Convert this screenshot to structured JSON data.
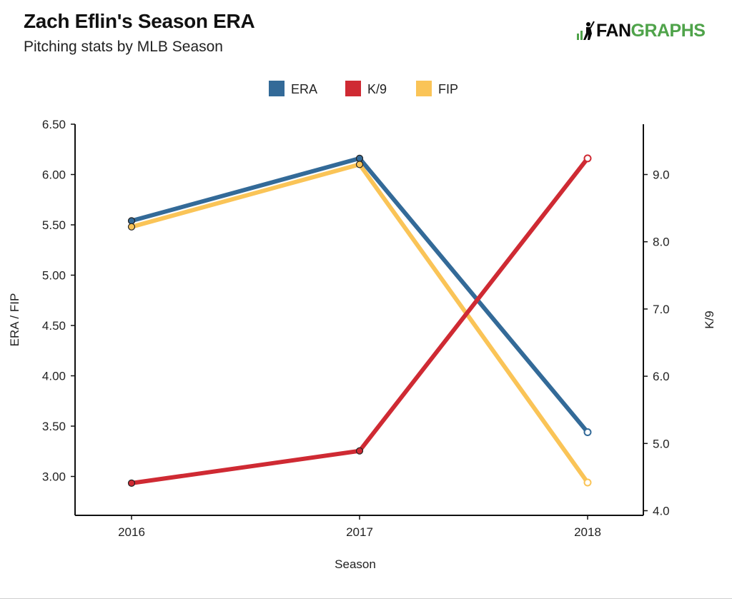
{
  "header": {
    "title": "Zach Eflin's Season ERA",
    "subtitle": "Pitching stats by MLB Season"
  },
  "brand": {
    "fan": "FAN",
    "graphs": "GRAPHS",
    "colors": {
      "fan": "#0a0a0a",
      "graphs": "#4fa34a"
    }
  },
  "chart_data": {
    "type": "line",
    "title": "Zach Eflin's Season ERA",
    "subtitle": "Pitching stats by MLB Season",
    "xlabel": "Season",
    "ylabel": "ERA / FIP",
    "y2label": "K/9",
    "categories": [
      "2016",
      "2017",
      "2018"
    ],
    "ylim": [
      2.75,
      6.5
    ],
    "y_ticks": [
      "6.50",
      "6.00",
      "5.50",
      "5.00",
      "4.50",
      "4.00",
      "3.50",
      "3.00"
    ],
    "y2lim": [
      3.95,
      9.75
    ],
    "y2_ticks": [
      "9.0",
      "8.0",
      "7.0",
      "6.0",
      "5.0",
      "4.0"
    ],
    "grid": false,
    "legend_position": "top-center",
    "series": [
      {
        "name": "ERA",
        "axis": "left",
        "color": "#336a98",
        "values": [
          5.54,
          6.16,
          3.44
        ]
      },
      {
        "name": "K/9",
        "axis": "right",
        "color": "#cf2a33",
        "values": [
          4.41,
          4.89,
          9.24
        ]
      },
      {
        "name": "FIP",
        "axis": "left",
        "color": "#fac457",
        "values": [
          5.48,
          6.1,
          2.94
        ]
      }
    ]
  }
}
